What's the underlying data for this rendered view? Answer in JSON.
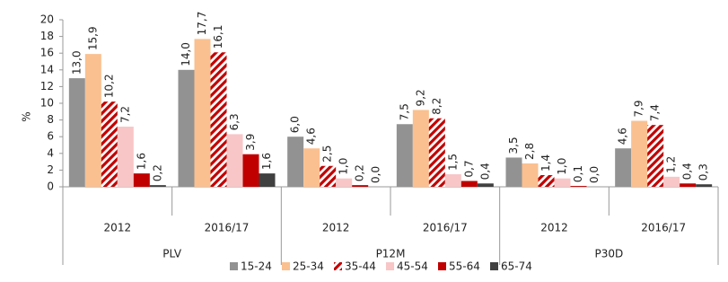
{
  "chart_data": {
    "type": "bar",
    "y_label": "%",
    "categories": [
      "2012",
      "2016/17",
      "2012",
      "2016/17",
      "2012",
      "2016/17"
    ],
    "groups": [
      "PLV",
      "P12M",
      "P30D"
    ],
    "series": [
      {
        "name": "15-24",
        "color": "#929292",
        "values": [
          13.0,
          14.0,
          6.0,
          7.5,
          3.5,
          4.6
        ],
        "value_labels": [
          "13,0",
          "14,0",
          "6,0",
          "7,5",
          "3,5",
          "4,6"
        ]
      },
      {
        "name": "25-34",
        "color": "#FAC090",
        "values": [
          15.9,
          17.7,
          4.6,
          9.2,
          2.8,
          7.9
        ],
        "value_labels": [
          "15,9",
          "17,7",
          "4,6",
          "9,2",
          "2,8",
          "7,9"
        ]
      },
      {
        "name": "35-44",
        "color": "#C00000",
        "hatch": true,
        "values": [
          10.2,
          16.1,
          2.5,
          8.2,
          1.4,
          7.4
        ],
        "value_labels": [
          "10,2",
          "16,1",
          "2,5",
          "8,2",
          "1,4",
          "7,4"
        ]
      },
      {
        "name": "45-54",
        "color": "#F8C6C6",
        "values": [
          7.2,
          6.3,
          1.0,
          1.5,
          1.0,
          1.2
        ],
        "value_labels": [
          "7,2",
          "6,3",
          "1,0",
          "1,5",
          "1,0",
          "1,2"
        ]
      },
      {
        "name": "55-64",
        "color": "#C00000",
        "values": [
          1.6,
          3.9,
          0.2,
          0.7,
          0.1,
          0.4
        ],
        "value_labels": [
          "1,6",
          "3,9",
          "0,2",
          "0,7",
          "0,1",
          "0,4"
        ]
      },
      {
        "name": "65-74",
        "color": "#404040",
        "values": [
          0.2,
          1.6,
          0.0,
          0.4,
          0.0,
          0.3
        ],
        "value_labels": [
          "0,2",
          "1,6",
          "0,0",
          "0,4",
          "0,0",
          "0,3"
        ]
      }
    ],
    "ylim": [
      0,
      20
    ],
    "yticks": [
      0,
      2,
      4,
      6,
      8,
      10,
      12,
      14,
      16,
      18,
      20
    ],
    "grid": false
  }
}
